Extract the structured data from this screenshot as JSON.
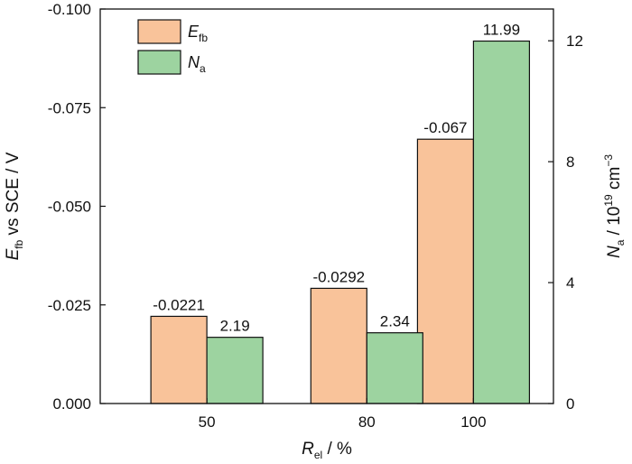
{
  "chart_data": {
    "type": "bar",
    "categories": [
      "50",
      "80",
      "100"
    ],
    "x": [
      50,
      80,
      100
    ],
    "xlim": [
      30,
      115
    ],
    "series": [
      {
        "name": "E_fb",
        "name_main": "E",
        "name_sub": "fb",
        "axis": "left",
        "color": "#f9c39a",
        "values": [
          -0.0221,
          -0.0292,
          -0.067
        ],
        "labels": [
          "-0.0221",
          "-0.0292",
          "-0.067"
        ]
      },
      {
        "name": "N_a",
        "name_main": "N",
        "name_sub": "a",
        "axis": "right",
        "color": "#9dd3a0",
        "values": [
          2.19,
          2.34,
          11.99
        ],
        "labels": [
          "2.19",
          "2.34",
          "11.99"
        ]
      }
    ],
    "y_left": {
      "label_main": "E",
      "label_sub": "fb",
      "label_rest": " vs SCE / V",
      "range": [
        0,
        -0.1
      ],
      "inverted": true,
      "ticks": [
        0,
        -0.025,
        -0.05,
        -0.075,
        -0.1
      ],
      "tick_labels": [
        "0.000",
        "-0.025",
        "-0.050",
        "-0.075",
        "-0.100"
      ]
    },
    "y_right": {
      "label_main": "N",
      "label_sub": "a",
      "label_mid": " / 10",
      "label_sup": "19",
      "label_unit": " cm",
      "label_unit_sup": "−3",
      "range": [
        0,
        13.05
      ],
      "ticks": [
        0,
        4,
        8,
        12
      ],
      "tick_labels": [
        "0",
        "4",
        "8",
        "12"
      ]
    },
    "x_axis": {
      "label_main": "R",
      "label_sub": "el",
      "label_rest": " / %"
    },
    "legend": "top-left",
    "grid": false
  }
}
